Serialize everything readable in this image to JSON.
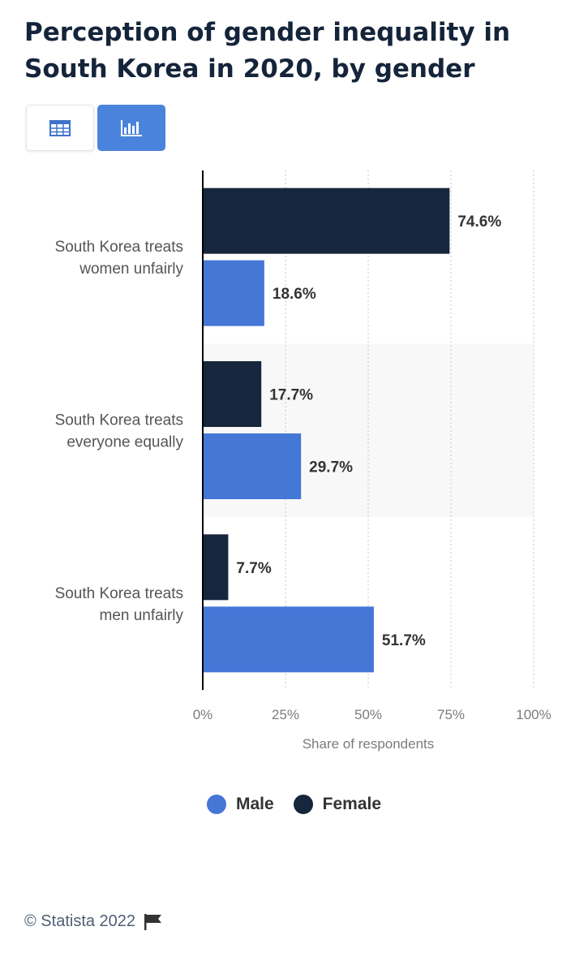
{
  "title": "Perception of gender inequality in South Korea in 2020, by gender",
  "toolbar": {
    "table_icon": "table-icon",
    "chart_icon": "bar-chart-icon",
    "active": "chart"
  },
  "colors": {
    "male": "#4477d6",
    "female": "#16263d",
    "active_button": "#4a83db"
  },
  "chart_data": {
    "type": "bar",
    "orientation": "horizontal",
    "categories": [
      [
        "South Korea treats",
        "women unfairly"
      ],
      [
        "South Korea treats",
        "everyone equally"
      ],
      [
        "South Korea treats",
        "men unfairly"
      ]
    ],
    "series": [
      {
        "name": "Female",
        "values": [
          74.6,
          17.7,
          7.7
        ],
        "labels": [
          "74.6%",
          "17.7%",
          "7.7%"
        ]
      },
      {
        "name": "Male",
        "values": [
          18.6,
          29.7,
          51.7
        ],
        "labels": [
          "18.6%",
          "29.7%",
          "51.7%"
        ]
      }
    ],
    "xlabel": "Share of respondents",
    "xlim": [
      0,
      100
    ],
    "xticks": [
      "0%",
      "25%",
      "50%",
      "75%",
      "100%"
    ],
    "grid": "vertical dotted",
    "legend_position": "bottom",
    "legend": [
      {
        "name": "Male",
        "color": "#4477d6"
      },
      {
        "name": "Female",
        "color": "#16263d"
      }
    ]
  },
  "footer": {
    "copyright": "© Statista 2022",
    "flag_icon": "flag-icon"
  }
}
